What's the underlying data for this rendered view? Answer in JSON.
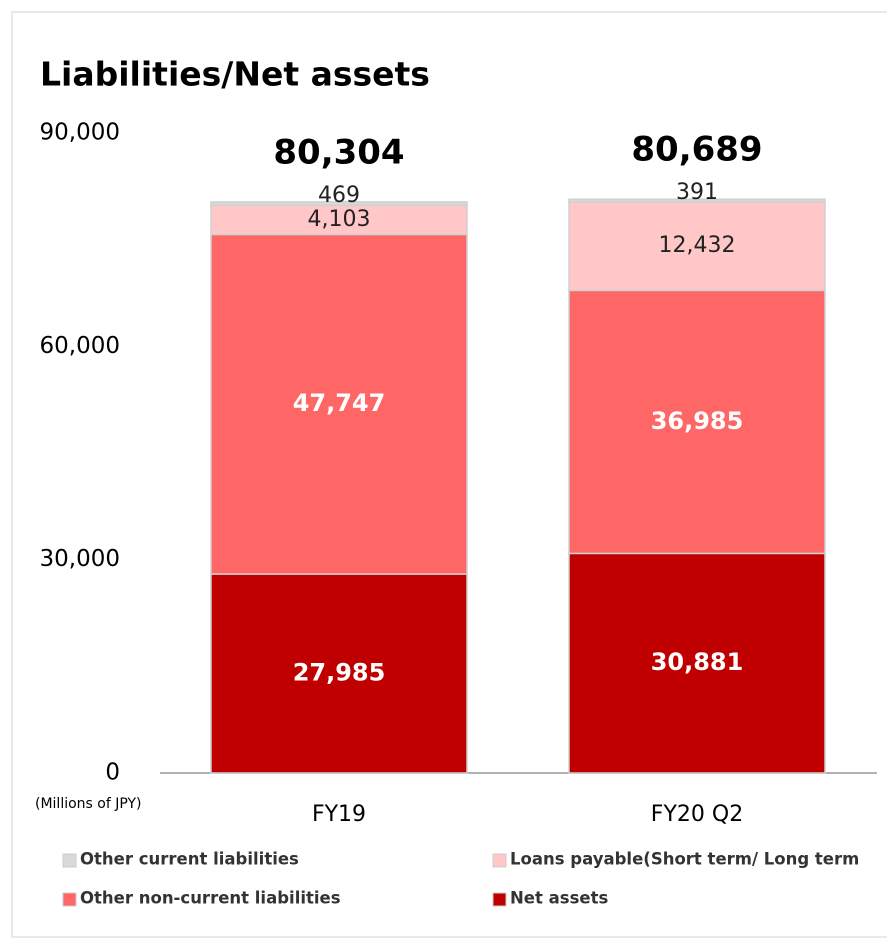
{
  "chart_data": {
    "type": "stacked-bar",
    "title": "Liabilities/Net assets",
    "y_axis_note": "(Millions of JPY)",
    "categories": [
      "FY19",
      "FY20 Q2"
    ],
    "series": [
      {
        "name": "Net assets",
        "color": "#c00000",
        "values": [
          27985,
          30881
        ],
        "value_labels": [
          "27,985",
          "30,881"
        ]
      },
      {
        "name": "Other non-current liabilities",
        "color": "#ff6666",
        "values": [
          47747,
          36985
        ],
        "value_labels": [
          "47,747",
          "36,985"
        ]
      },
      {
        "name": "Loans payable(Short term/ Long term",
        "color": "#ffc7c7",
        "values": [
          4103,
          12432
        ],
        "value_labels": [
          "4,103",
          "12,432"
        ]
      },
      {
        "name": "Other current liabilities",
        "color": "#d9d9d9",
        "values": [
          469,
          391
        ],
        "value_labels": [
          "469",
          "391"
        ]
      }
    ],
    "totals": [
      80304,
      80689
    ],
    "total_labels": [
      "80,304",
      "80,689"
    ],
    "legend_order": [
      3,
      2,
      1,
      0
    ],
    "ylim": [
      0,
      90000
    ],
    "yticks": [
      0,
      {
        "value": 30000,
        "label": "30,000"
      },
      {
        "value": 60000,
        "label": "60,000"
      },
      {
        "value": 90000,
        "label": "90,000"
      }
    ],
    "grid": false
  }
}
